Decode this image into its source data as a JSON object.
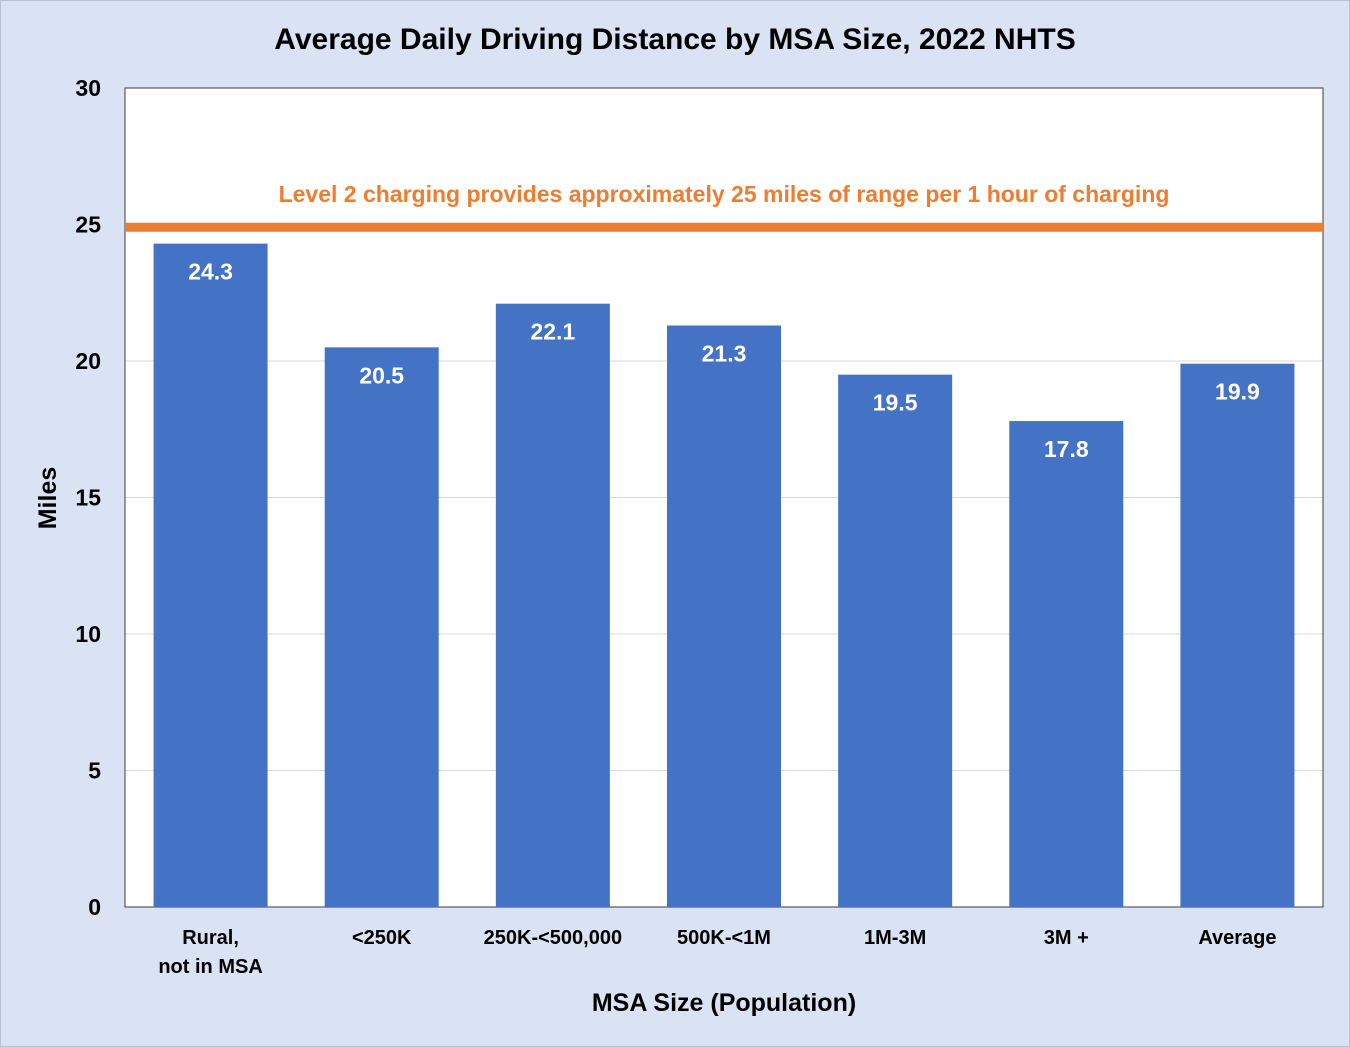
{
  "colors": {
    "background": "#dae3f3",
    "plot_area": "#ffffff",
    "bar": "#4472c4",
    "reference_line": "#ed7d31",
    "gridline": "#d9d9d9",
    "text": "#000000",
    "bar_label": "#ffffff"
  },
  "chart_data": {
    "type": "bar",
    "title": "Average Daily Driving Distance by MSA Size, 2022 NHTS",
    "xlabel": "MSA Size (Population)",
    "ylabel": "Miles",
    "ylim": [
      0,
      30
    ],
    "yticks": [
      0,
      5,
      10,
      15,
      20,
      25,
      30
    ],
    "grid": true,
    "categories": [
      [
        "Rural,",
        "not in MSA"
      ],
      [
        "<250K"
      ],
      [
        "250K-<500,000"
      ],
      [
        "500K-<1M"
      ],
      [
        "1M-3M"
      ],
      [
        "3M +"
      ],
      [
        "Average"
      ]
    ],
    "values": [
      24.3,
      20.5,
      22.1,
      21.3,
      19.5,
      17.8,
      19.9
    ],
    "value_labels": [
      "24.3",
      "20.5",
      "22.1",
      "21.3",
      "19.5",
      "17.8",
      "19.9"
    ],
    "reference_line": {
      "value": 24.9,
      "label": "Level 2 charging provides approximately 25 miles of range per 1 hour of charging"
    }
  }
}
